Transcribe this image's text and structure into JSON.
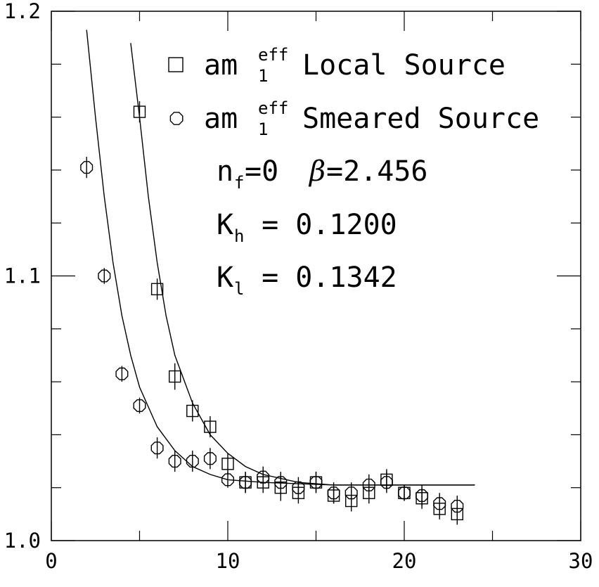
{
  "chart_data": {
    "type": "scatter",
    "title": "",
    "xlabel": "",
    "ylabel": "",
    "xlim": [
      0,
      30
    ],
    "ylim": [
      1.0,
      1.2
    ],
    "x_ticks": [
      "0",
      "10",
      "20",
      "30"
    ],
    "y_ticks": [
      "1.0",
      "1.1",
      "1.2"
    ],
    "grid": false,
    "legend_position": "top-right",
    "series": [
      {
        "marker": "square",
        "legend": {
          "base": "am",
          "sup": "eff",
          "sub": "1",
          "text": "Local Source"
        },
        "points": [
          {
            "x": 5,
            "y": 1.162,
            "err": 0.004
          },
          {
            "x": 6,
            "y": 1.095,
            "err": 0.004
          },
          {
            "x": 7,
            "y": 1.062,
            "err": 0.005
          },
          {
            "x": 8,
            "y": 1.049,
            "err": 0.004
          },
          {
            "x": 9,
            "y": 1.043,
            "err": 0.004
          },
          {
            "x": 10,
            "y": 1.029,
            "err": 0.004
          },
          {
            "x": 11,
            "y": 1.022,
            "err": 0.004
          },
          {
            "x": 12,
            "y": 1.022,
            "err": 0.004
          },
          {
            "x": 13,
            "y": 1.02,
            "err": 0.005
          },
          {
            "x": 14,
            "y": 1.018,
            "err": 0.004
          },
          {
            "x": 15,
            "y": 1.022,
            "err": 0.004
          },
          {
            "x": 16,
            "y": 1.017,
            "err": 0.003
          },
          {
            "x": 17,
            "y": 1.015,
            "err": 0.004
          },
          {
            "x": 18,
            "y": 1.018,
            "err": 0.004
          },
          {
            "x": 19,
            "y": 1.023,
            "err": 0.004
          },
          {
            "x": 20,
            "y": 1.018,
            "err": 0.003
          },
          {
            "x": 21,
            "y": 1.016,
            "err": 0.004
          },
          {
            "x": 22,
            "y": 1.012,
            "err": 0.004
          },
          {
            "x": 23,
            "y": 1.01,
            "err": 0.004
          }
        ]
      },
      {
        "marker": "octagon",
        "legend": {
          "base": "am",
          "sup": "eff",
          "sub": "1",
          "text": "Smeared Source"
        },
        "points": [
          {
            "x": 2,
            "y": 1.141,
            "err": 0.004
          },
          {
            "x": 3,
            "y": 1.1,
            "err": 0.003
          },
          {
            "x": 4,
            "y": 1.063,
            "err": 0.003
          },
          {
            "x": 5,
            "y": 1.051,
            "err": 0.003
          },
          {
            "x": 6,
            "y": 1.035,
            "err": 0.004
          },
          {
            "x": 7,
            "y": 1.03,
            "err": 0.004
          },
          {
            "x": 8,
            "y": 1.03,
            "err": 0.004
          },
          {
            "x": 9,
            "y": 1.031,
            "err": 0.004
          },
          {
            "x": 10,
            "y": 1.023,
            "err": 0.003
          },
          {
            "x": 11,
            "y": 1.022,
            "err": 0.004
          },
          {
            "x": 12,
            "y": 1.024,
            "err": 0.004
          },
          {
            "x": 13,
            "y": 1.022,
            "err": 0.004
          },
          {
            "x": 14,
            "y": 1.02,
            "err": 0.004
          },
          {
            "x": 15,
            "y": 1.022,
            "err": 0.004
          },
          {
            "x": 16,
            "y": 1.018,
            "err": 0.004
          },
          {
            "x": 17,
            "y": 1.018,
            "err": 0.004
          },
          {
            "x": 18,
            "y": 1.021,
            "err": 0.004
          },
          {
            "x": 19,
            "y": 1.022,
            "err": 0.004
          },
          {
            "x": 20,
            "y": 1.018,
            "err": 0.003
          },
          {
            "x": 21,
            "y": 1.017,
            "err": 0.004
          },
          {
            "x": 22,
            "y": 1.014,
            "err": 0.004
          },
          {
            "x": 23,
            "y": 1.013,
            "err": 0.004
          }
        ]
      }
    ],
    "fit_curves": [
      {
        "for": "Local Source",
        "points": [
          [
            4.5,
            1.188
          ],
          [
            5,
            1.16
          ],
          [
            5.5,
            1.13
          ],
          [
            6,
            1.105
          ],
          [
            6.5,
            1.085
          ],
          [
            7,
            1.07
          ],
          [
            8,
            1.052
          ],
          [
            9,
            1.04
          ],
          [
            10,
            1.033
          ],
          [
            11,
            1.028
          ],
          [
            12,
            1.025
          ],
          [
            14,
            1.022
          ],
          [
            16,
            1.021
          ],
          [
            20,
            1.021
          ],
          [
            24,
            1.021
          ]
        ]
      },
      {
        "for": "Smeared Source",
        "points": [
          [
            2,
            1.193
          ],
          [
            2.5,
            1.16
          ],
          [
            3,
            1.13
          ],
          [
            3.5,
            1.105
          ],
          [
            4,
            1.085
          ],
          [
            4.5,
            1.07
          ],
          [
            5,
            1.058
          ],
          [
            6,
            1.043
          ],
          [
            7,
            1.034
          ],
          [
            8,
            1.028
          ],
          [
            9,
            1.025
          ],
          [
            10,
            1.023
          ],
          [
            12,
            1.022
          ],
          [
            16,
            1.021
          ],
          [
            20,
            1.021
          ],
          [
            24,
            1.021
          ]
        ]
      }
    ],
    "annotations": {
      "nf_base": "n",
      "nf_sub": "f",
      "nf_rest": "=0 ",
      "beta_symbol": "β",
      "beta_value": "=2.456",
      "kh_base": "K",
      "kh_sub": "h",
      "kh_rest": " = 0.1200",
      "kl_base": "K",
      "kl_sub": "l",
      "kl_rest": " = 0.1342"
    }
  }
}
